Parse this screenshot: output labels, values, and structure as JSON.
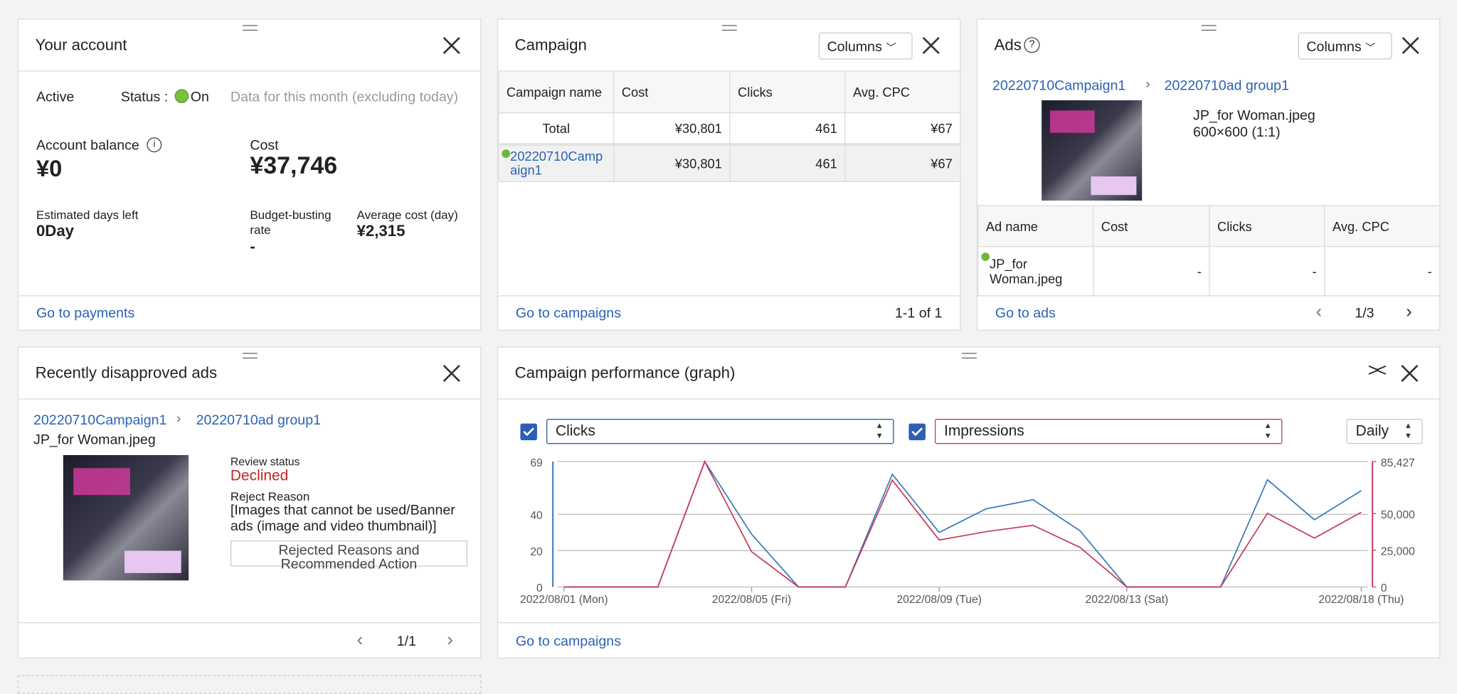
{
  "account": {
    "title": "Your account",
    "active": "Active",
    "status_label": "Status :",
    "status": "On",
    "note": "Data for this month (excluding today)",
    "balance_label": "Account balance",
    "balance": "¥0",
    "cost_label": "Cost",
    "cost": "¥37,746",
    "days_left_label": "Estimated days left",
    "days_left": "0Day",
    "busting_label": "Budget-busting rate",
    "busting": "-",
    "avg_label": "Average cost (day)",
    "avg": "¥2,315",
    "link": "Go to payments"
  },
  "campaign": {
    "title": "Campaign",
    "columns_button": "Columns",
    "table": {
      "headers": [
        "Campaign name",
        "Cost",
        "Clicks",
        "Avg. CPC"
      ],
      "rows": [
        [
          "Total",
          "¥30,801",
          "461",
          "¥67"
        ],
        [
          "20220710Campaign1",
          "¥30,801",
          "461",
          "¥67"
        ]
      ]
    },
    "link": "Go to campaigns",
    "pagination": "1-1 of 1"
  },
  "ads": {
    "title": "Ads",
    "columns_button": "Columns",
    "breadcrumb": [
      "20220710Campaign1",
      "20220710ad group1"
    ],
    "file": "JP_for Woman.jpeg",
    "size": "600×600 (1:1)",
    "table": {
      "headers": [
        "Ad name",
        "Cost",
        "Clicks",
        "Avg. CPC"
      ],
      "rows": [
        [
          "JP_for Woman.jpeg",
          "-",
          "-",
          "-"
        ]
      ]
    },
    "link": "Go to ads",
    "pagination": "1/3"
  },
  "disapproved": {
    "title": "Recently disapproved ads",
    "breadcrumb": [
      "20220710Campaign1",
      "20220710ad group1"
    ],
    "file": "JP_for Woman.jpeg",
    "review_status_label": "Review status",
    "review_status": "Declined",
    "reject_reason_label": "Reject Reason",
    "reject_reason": "[Images that cannot be used/Banner ads (image and video thumbnail)]",
    "button": "Rejected Reasons and Recommended Action",
    "pagination": "1/1"
  },
  "performance": {
    "title": "Campaign performance (graph)",
    "metric1": "Clicks",
    "metric2": "Impressions",
    "period": "Daily",
    "link": "Go to campaigns",
    "chart": {
      "type": "line",
      "categories": [
        "2022/08/01 (Mon)",
        null,
        null,
        null,
        "2022/08/05 (Fri)",
        null,
        null,
        null,
        "2022/08/09 (Tue)",
        null,
        null,
        null,
        "2022/08/13 (Sat)",
        null,
        null,
        null,
        null,
        "2022/08/18 (Thu)"
      ],
      "series": [
        {
          "name": "Clicks",
          "color": "#3a78b8",
          "values": [
            0,
            0,
            0,
            69,
            29,
            0,
            0,
            62,
            30,
            43,
            48,
            31,
            0,
            0,
            0,
            59,
            37,
            53
          ]
        },
        {
          "name": "Impressions",
          "color": "#c8385a",
          "axis": "y2",
          "values": [
            0,
            0,
            0,
            85427,
            24000,
            0,
            0,
            72800,
            32000,
            37700,
            42000,
            27000,
            0,
            0,
            0,
            50200,
            33300,
            50900
          ]
        }
      ],
      "ylim": [
        0,
        69
      ],
      "yticks": [
        0,
        20,
        40,
        69
      ],
      "y2lim": [
        0,
        85427
      ],
      "y2ticks": [
        0,
        {
          "value": 25000,
          "label": "25,000"
        },
        {
          "value": 50000,
          "label": "50,000"
        },
        {
          "value": 85427,
          "label": "85,427"
        }
      ],
      "grid": true
    }
  }
}
